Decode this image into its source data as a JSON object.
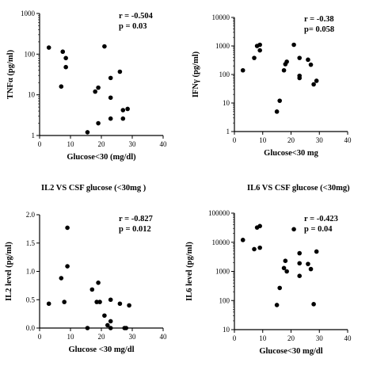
{
  "figure_titles": {
    "il2": "IL2 VS CSF glucose (<30mg )",
    "il6": "IL6 VS CSF glucose (<30mg)"
  },
  "chart_data": [
    {
      "id": "tnf",
      "type": "scatter",
      "ylabel": "TNFα (pg/ml)",
      "xlabel": "Glucose<30 (mg/dl)",
      "xlim": [
        0,
        40
      ],
      "ylim": [
        1,
        1000
      ],
      "yscale": "log",
      "xticks": [
        "0",
        "10",
        "20",
        "30",
        "40"
      ],
      "yticks": [
        "1",
        "10",
        "100",
        "1000"
      ],
      "stats": [
        "r = -0.504",
        "p = 0.03"
      ],
      "points": [
        {
          "x": 3,
          "y": 145
        },
        {
          "x": 7.5,
          "y": 115
        },
        {
          "x": 8.5,
          "y": 80
        },
        {
          "x": 8.5,
          "y": 48
        },
        {
          "x": 7,
          "y": 16
        },
        {
          "x": 21,
          "y": 155
        },
        {
          "x": 23,
          "y": 26
        },
        {
          "x": 26,
          "y": 37
        },
        {
          "x": 18,
          "y": 12
        },
        {
          "x": 19,
          "y": 15
        },
        {
          "x": 23,
          "y": 8.5
        },
        {
          "x": 27,
          "y": 4.2
        },
        {
          "x": 28.5,
          "y": 4.5
        },
        {
          "x": 23,
          "y": 2.6
        },
        {
          "x": 19,
          "y": 2
        },
        {
          "x": 27,
          "y": 2.6
        },
        {
          "x": 15.5,
          "y": 1.2
        }
      ]
    },
    {
      "id": "ifn",
      "type": "scatter",
      "ylabel": "IFNγ (pg/ml)",
      "xlabel": "Glucose<30 mg",
      "xlim": [
        0,
        40
      ],
      "ylim": [
        1,
        10000
      ],
      "yscale": "log",
      "xticks": [
        "0",
        "10",
        "20",
        "30",
        "40"
      ],
      "yticks": [
        "1",
        "10",
        "100",
        "1000",
        "10000"
      ],
      "stats": [
        "r = -0.38",
        "p= 0.058"
      ],
      "points": [
        {
          "x": 3,
          "y": 140
        },
        {
          "x": 7,
          "y": 380
        },
        {
          "x": 8,
          "y": 1000
        },
        {
          "x": 9,
          "y": 1100
        },
        {
          "x": 9,
          "y": 700
        },
        {
          "x": 21,
          "y": 1100
        },
        {
          "x": 18,
          "y": 230
        },
        {
          "x": 18.5,
          "y": 280
        },
        {
          "x": 17.5,
          "y": 140
        },
        {
          "x": 23,
          "y": 380
        },
        {
          "x": 23,
          "y": 90
        },
        {
          "x": 23,
          "y": 75
        },
        {
          "x": 26,
          "y": 330
        },
        {
          "x": 27,
          "y": 220
        },
        {
          "x": 28,
          "y": 45
        },
        {
          "x": 29,
          "y": 60
        },
        {
          "x": 16,
          "y": 12
        },
        {
          "x": 15,
          "y": 5
        }
      ]
    },
    {
      "id": "il2",
      "type": "scatter",
      "ylabel": "IL2 level (pg/ml)",
      "xlabel": "Glucose <30 mg/dl",
      "xlim": [
        0,
        40
      ],
      "ylim": [
        0,
        2
      ],
      "yscale": "linear",
      "xticks": [
        "0",
        "10",
        "20",
        "30",
        "40"
      ],
      "yticks": [
        "0.0",
        "0.5",
        "1.0",
        "1.5",
        "2.0"
      ],
      "stats": [
        "r = -0.827",
        "p = 0.012"
      ],
      "points": [
        {
          "x": 3,
          "y": 0.43
        },
        {
          "x": 7,
          "y": 0.88
        },
        {
          "x": 8,
          "y": 0.46
        },
        {
          "x": 9,
          "y": 1.77
        },
        {
          "x": 9,
          "y": 1.09
        },
        {
          "x": 15.5,
          "y": 0
        },
        {
          "x": 17,
          "y": 0.68
        },
        {
          "x": 18.5,
          "y": 0.46
        },
        {
          "x": 19,
          "y": 0.8
        },
        {
          "x": 19.5,
          "y": 0.46
        },
        {
          "x": 21,
          "y": 0.22
        },
        {
          "x": 22,
          "y": 0.05
        },
        {
          "x": 23,
          "y": 0.12
        },
        {
          "x": 23,
          "y": 0
        },
        {
          "x": 23,
          "y": 0.5
        },
        {
          "x": 26,
          "y": 0.43
        },
        {
          "x": 27.5,
          "y": 0
        },
        {
          "x": 28,
          "y": 0
        },
        {
          "x": 29,
          "y": 0.4
        }
      ]
    },
    {
      "id": "il6",
      "type": "scatter",
      "ylabel": "IL6 level (pg/ml)",
      "xlabel": "Glucose<30 mg/dl",
      "xlim": [
        0,
        40
      ],
      "ylim": [
        10,
        100000
      ],
      "yscale": "log",
      "xticks": [
        "0",
        "10",
        "20",
        "30",
        "40"
      ],
      "yticks": [
        "10",
        "100",
        "1000",
        "10000",
        "100000"
      ],
      "stats": [
        "r = -0.423",
        "p = 0.04"
      ],
      "points": [
        {
          "x": 3,
          "y": 12000
        },
        {
          "x": 7,
          "y": 5800
        },
        {
          "x": 8,
          "y": 32000
        },
        {
          "x": 9,
          "y": 36000
        },
        {
          "x": 9,
          "y": 6500
        },
        {
          "x": 21,
          "y": 28000
        },
        {
          "x": 18,
          "y": 2300
        },
        {
          "x": 18.5,
          "y": 1000
        },
        {
          "x": 17.5,
          "y": 1300
        },
        {
          "x": 23,
          "y": 4200
        },
        {
          "x": 23,
          "y": 1900
        },
        {
          "x": 23,
          "y": 700
        },
        {
          "x": 26,
          "y": 1800
        },
        {
          "x": 27,
          "y": 1200
        },
        {
          "x": 29,
          "y": 4800
        },
        {
          "x": 16,
          "y": 270
        },
        {
          "x": 15,
          "y": 70
        },
        {
          "x": 28,
          "y": 75
        }
      ]
    }
  ]
}
